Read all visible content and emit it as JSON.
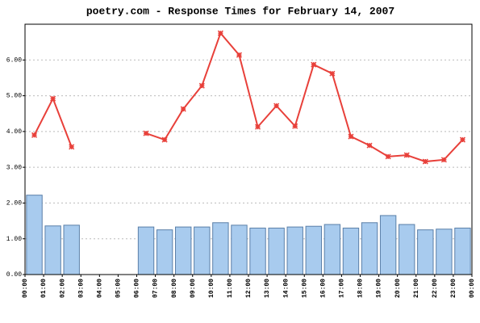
{
  "chart_data": {
    "type": "combo",
    "title": "poetry.com - Response Times for February 14, 2007",
    "xlim": [
      0,
      24
    ],
    "xticks": [
      {
        "value": 0,
        "label": "00:00"
      },
      {
        "value": 1,
        "label": "01:00"
      },
      {
        "value": 2,
        "label": "02:00"
      },
      {
        "value": 3,
        "label": "03:00"
      },
      {
        "value": 4,
        "label": "04:00"
      },
      {
        "value": 5,
        "label": "05:00"
      },
      {
        "value": 6,
        "label": "06:00"
      },
      {
        "value": 7,
        "label": "07:00"
      },
      {
        "value": 8,
        "label": "08:00"
      },
      {
        "value": 9,
        "label": "09:00"
      },
      {
        "value": 10,
        "label": "10:00"
      },
      {
        "value": 11,
        "label": "11:00"
      },
      {
        "value": 12,
        "label": "12:00"
      },
      {
        "value": 13,
        "label": "13:00"
      },
      {
        "value": 14,
        "label": "14:00"
      },
      {
        "value": 15,
        "label": "15:00"
      },
      {
        "value": 16,
        "label": "16:00"
      },
      {
        "value": 17,
        "label": "17:00"
      },
      {
        "value": 18,
        "label": "18:00"
      },
      {
        "value": 19,
        "label": "19:00"
      },
      {
        "value": 20,
        "label": "20:00"
      },
      {
        "value": 21,
        "label": "21:00"
      },
      {
        "value": 22,
        "label": "22:00"
      },
      {
        "value": 23,
        "label": "23:00"
      },
      {
        "value": 24,
        "label": "00:00"
      }
    ],
    "ylim": [
      0,
      7
    ],
    "yticks": [
      {
        "value": 0,
        "label": "0.00"
      },
      {
        "value": 1,
        "label": "1.00"
      },
      {
        "value": 2,
        "label": "2.00"
      },
      {
        "value": 3,
        "label": "3.00"
      },
      {
        "value": 4,
        "label": "4.00"
      },
      {
        "value": 5,
        "label": "5.00"
      },
      {
        "value": 6,
        "label": "6.00"
      }
    ],
    "grid": true,
    "x": [
      0.5,
      1.5,
      2.5,
      3.5,
      4.5,
      5.5,
      6.5,
      7.5,
      8.5,
      9.5,
      10.5,
      11.5,
      12.5,
      13.5,
      14.5,
      15.5,
      16.5,
      17.5,
      18.5,
      19.5,
      20.5,
      21.5,
      22.5,
      23.5
    ],
    "series": [
      {
        "type": "bar",
        "color": "#a8cbee",
        "values": [
          2.22,
          1.36,
          1.38,
          null,
          null,
          null,
          1.33,
          1.25,
          1.33,
          1.33,
          1.45,
          1.38,
          1.3,
          1.3,
          1.33,
          1.35,
          1.4,
          1.3,
          1.45,
          1.65,
          1.4,
          1.25,
          1.27,
          1.3
        ]
      },
      {
        "type": "line",
        "color": "#e8403a",
        "values": [
          3.9,
          4.92,
          3.57,
          null,
          null,
          null,
          3.95,
          3.77,
          4.63,
          5.28,
          6.75,
          6.14,
          4.13,
          4.72,
          4.15,
          5.87,
          5.62,
          3.86,
          3.61,
          3.3,
          3.34,
          3.16,
          3.21,
          3.77
        ]
      }
    ]
  }
}
